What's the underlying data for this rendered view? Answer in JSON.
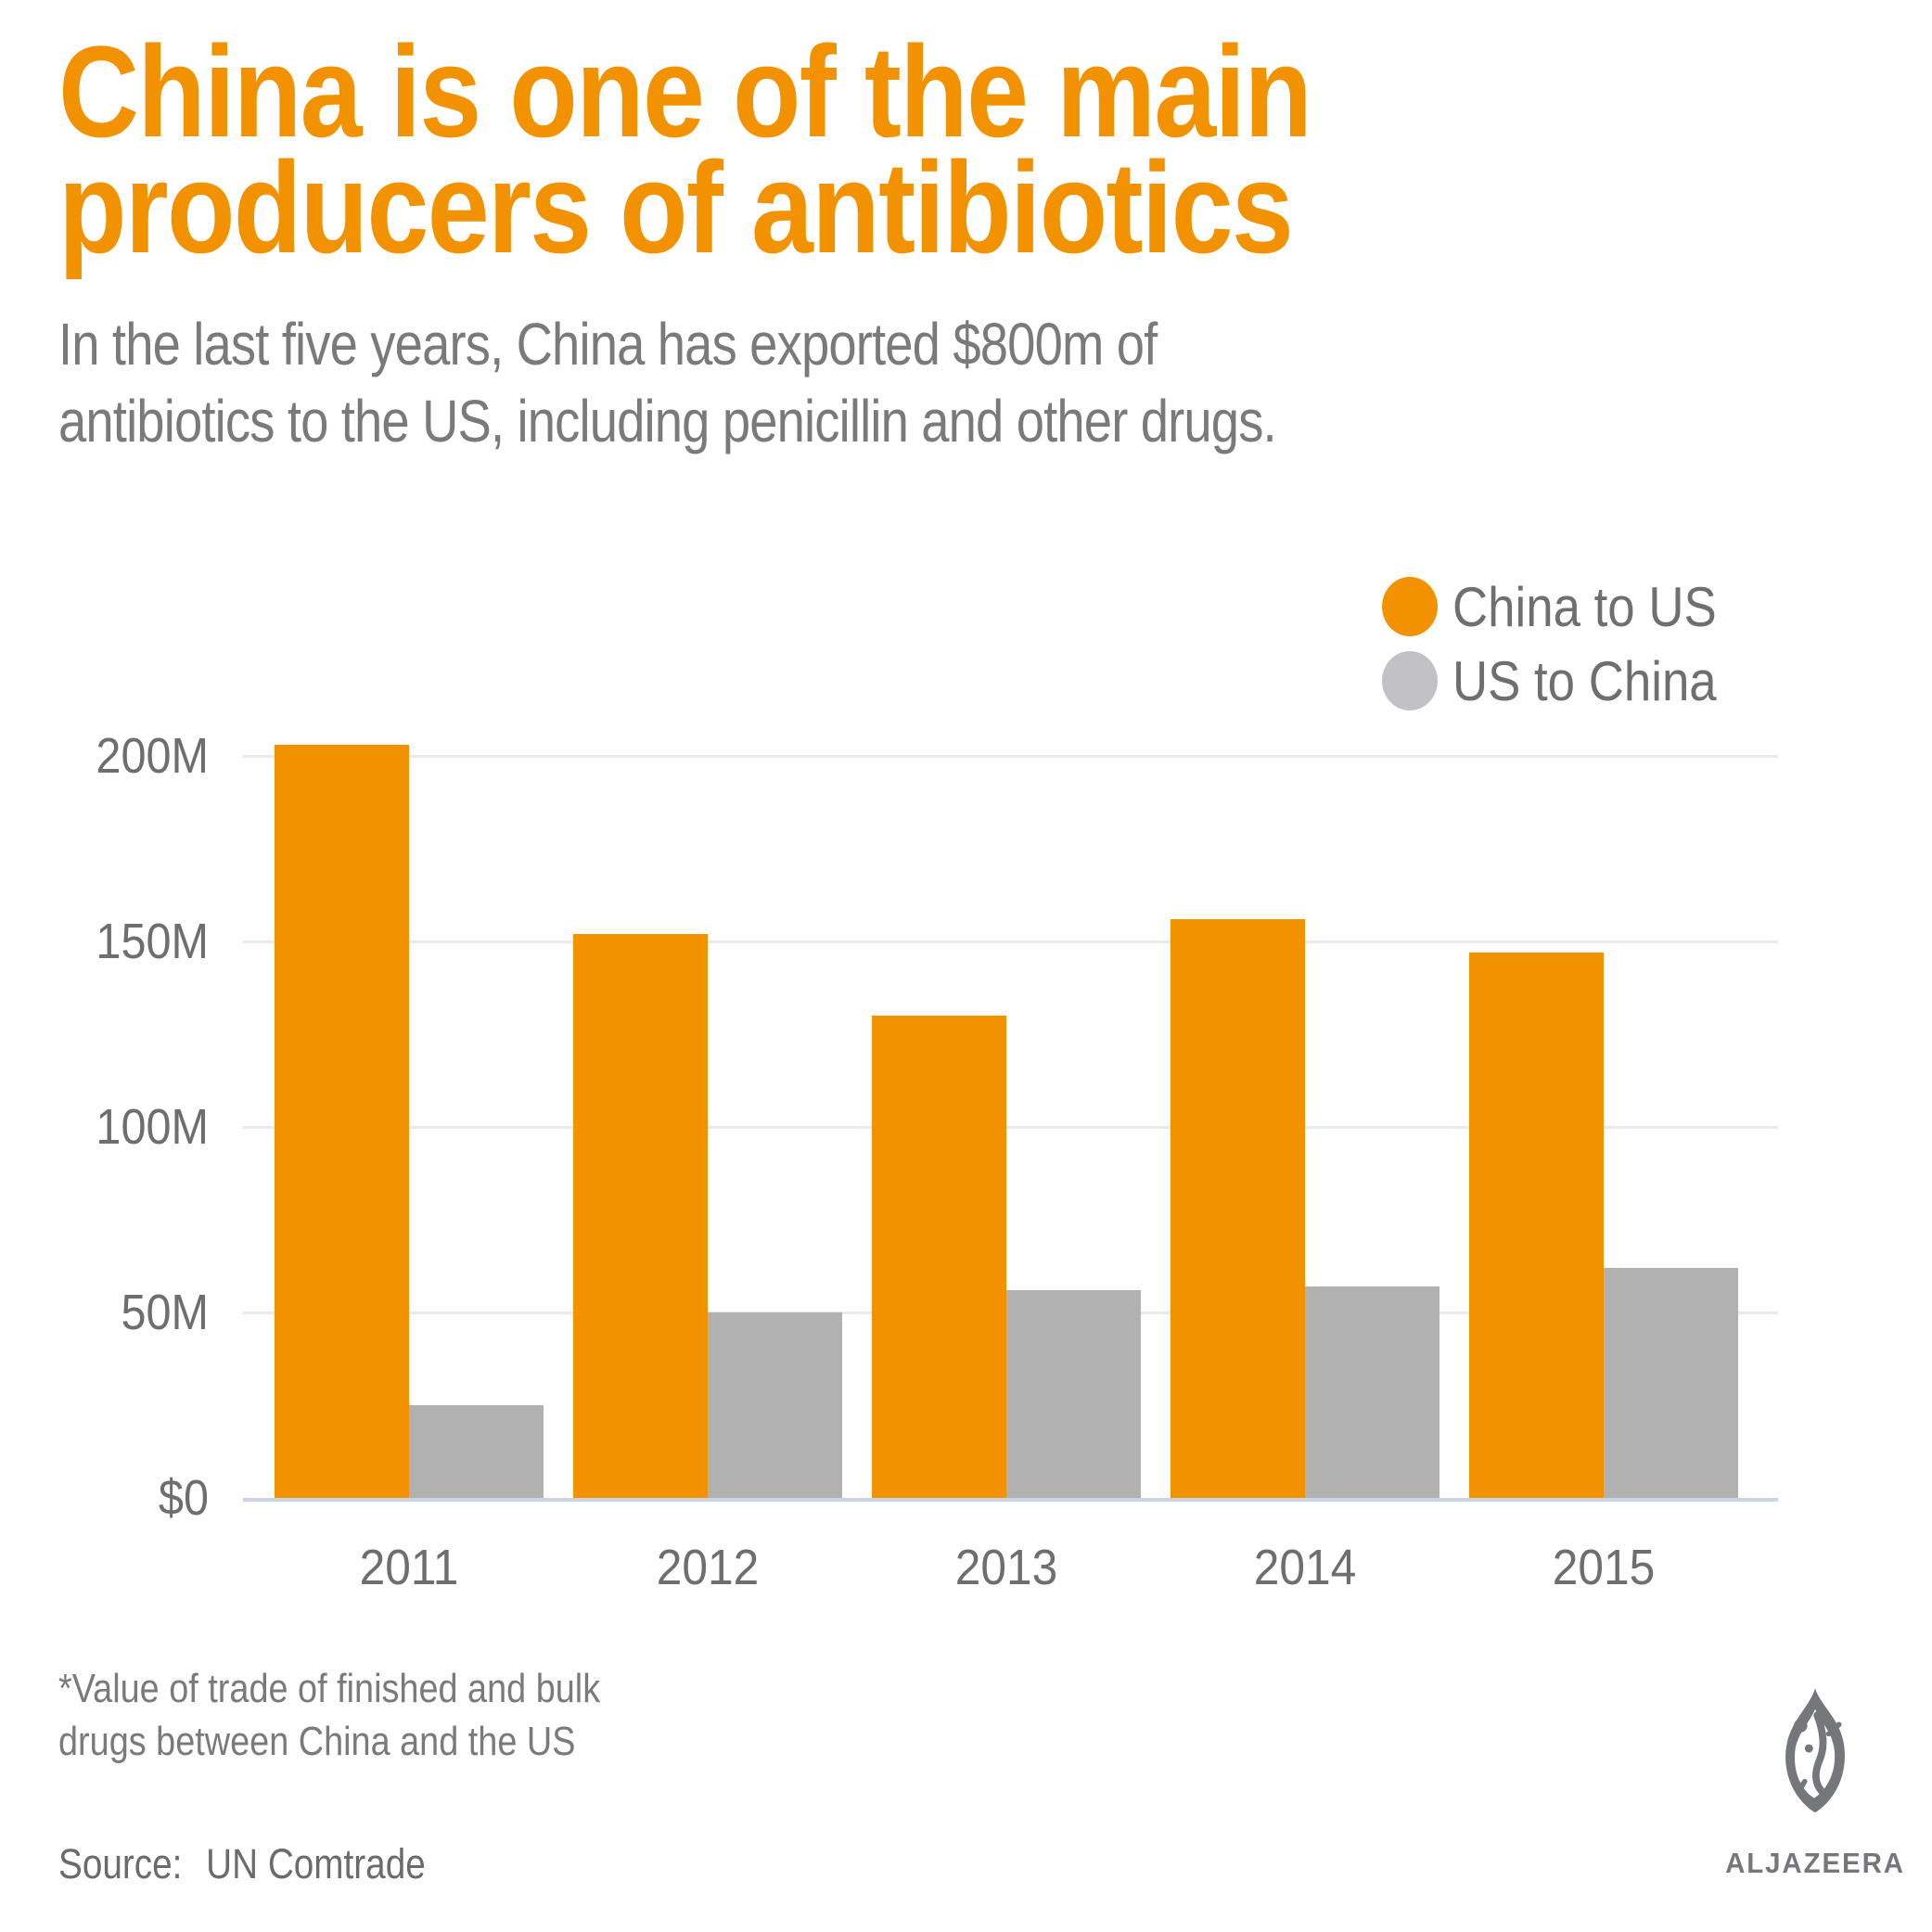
{
  "colors": {
    "accent_orange": "#F39200",
    "bar_gray": "#B1B1B1",
    "legend_gray": "#C2C2C4",
    "body_text_gray": "#7A7A7A",
    "axis_text_gray": "#6E6E6E",
    "gridline": "#E9E9E9",
    "axis_baseline": "#CBD4E6",
    "logo_gray": "#76777A"
  },
  "header": {
    "title_line1": "China is one of the main",
    "title_line2": "producers of antibiotics",
    "subtitle_line1": "In the last five years, China has exported $800m of",
    "subtitle_line2": "antibiotics to the US, including penicillin and other drugs."
  },
  "legend": {
    "items": [
      {
        "label": "China to US",
        "color": "#F39200"
      },
      {
        "label": "US to China",
        "color": "#C2C2C4"
      }
    ]
  },
  "chart_data": {
    "type": "bar",
    "categories": [
      "2011",
      "2012",
      "2013",
      "2014",
      "2015"
    ],
    "series": [
      {
        "name": "China to US",
        "color": "#F39200",
        "values": [
          203,
          152,
          130,
          156,
          147
        ]
      },
      {
        "name": "US to China",
        "color": "#B1B1B1",
        "values": [
          25,
          50,
          56,
          57,
          62
        ]
      }
    ],
    "unit": "USD millions",
    "ylim": [
      0,
      200
    ],
    "yticks": [
      {
        "value": 200,
        "label": "200M"
      },
      {
        "value": 150,
        "label": "150M"
      },
      {
        "value": 100,
        "label": "100M"
      },
      {
        "value": 50,
        "label": "50M"
      },
      {
        "value": 0,
        "label": "$0"
      }
    ],
    "grid": true,
    "legend_position": "top-right"
  },
  "footnote": {
    "line1": "*Value of trade of finished and bulk",
    "line2": "drugs between China and the US"
  },
  "source": {
    "label": "Source:",
    "value": "UN Comtrade"
  },
  "logo": {
    "wordmark": "ALJAZEERA"
  }
}
